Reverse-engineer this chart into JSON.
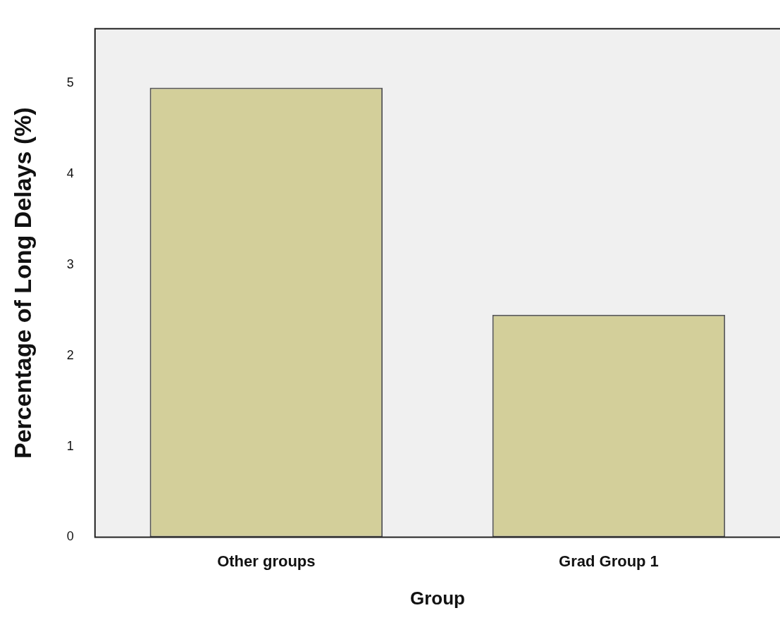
{
  "chart_data": {
    "type": "bar",
    "xlabel": "Group",
    "ylabel": "Percentage of Long Delays (%)",
    "categories": [
      "Other groups",
      "Grad Group 1"
    ],
    "values": [
      4.95,
      2.45
    ],
    "color": "#d3cf9a",
    "ylim": [
      0,
      5.6
    ],
    "yticks": [
      0,
      1,
      2,
      3,
      4,
      5
    ],
    "grid": false,
    "legend": false
  }
}
